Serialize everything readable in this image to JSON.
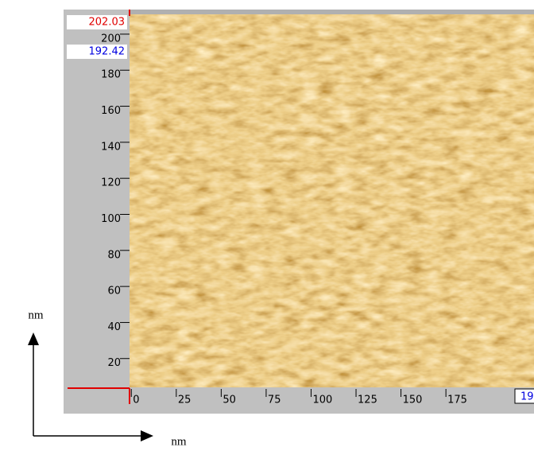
{
  "chart_data": {
    "type": "image",
    "xlim": [
      -1,
      224
    ],
    "ylim": [
      4,
      211
    ],
    "xticks": [
      0,
      25,
      50,
      75,
      100,
      125,
      150,
      175
    ],
    "yticks": [
      20,
      40,
      60,
      80,
      100,
      120,
      140,
      160,
      180,
      200
    ],
    "cursor_top": 202.03,
    "cursor_bottom": 192.42,
    "x_cursor": "19",
    "x_unit": "nm",
    "y_unit": "nm"
  }
}
